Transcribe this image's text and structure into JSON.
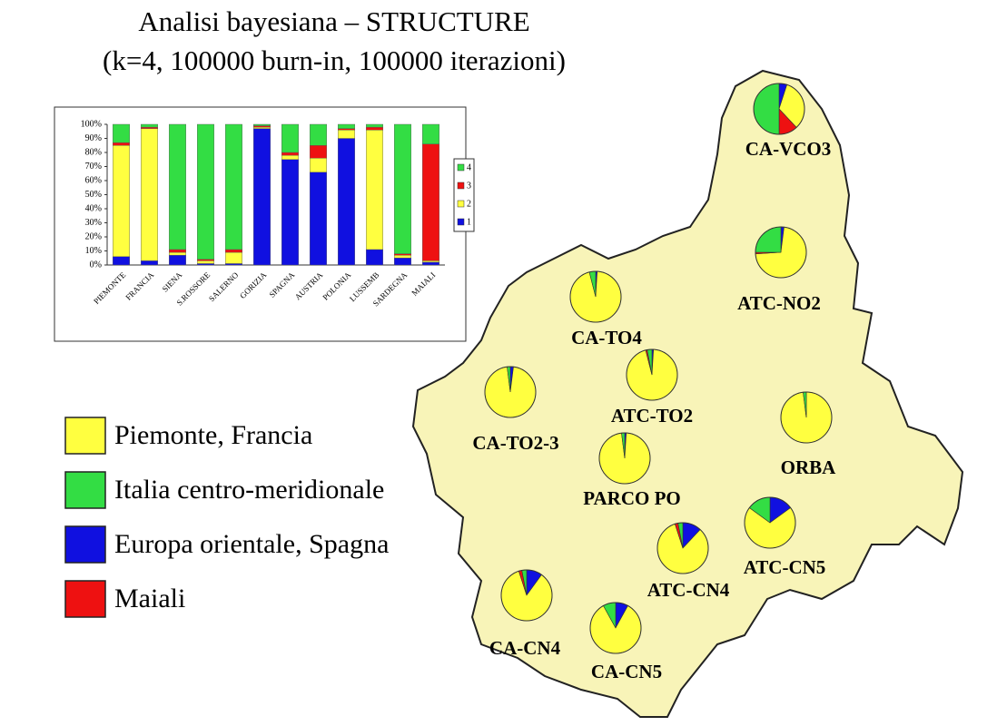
{
  "title": "Analisi bayesiana – STRUCTURE",
  "subtitle": "(k=4, 100000 burn-in, 100000 iterazioni)",
  "legend": [
    {
      "label": "Piemonte, Francia",
      "color": "#ffff40"
    },
    {
      "label": "Italia centro-meridionale",
      "color": "#33dd44"
    },
    {
      "label": "Europa orientale, Spagna",
      "color": "#1010e0"
    },
    {
      "label": "Maiali",
      "color": "#ee1111"
    }
  ],
  "chart_data": [
    {
      "type": "bar",
      "stacked": true,
      "categories": [
        "PIEMONTE",
        "FRANCIA",
        "SIENA",
        "S.ROSSORE",
        "SALERNO",
        "GORIZIA",
        "SPAGNA",
        "AUSTRIA",
        "POLONIA",
        "LUSSEMB",
        "SARDEGNA",
        "MAIALI"
      ],
      "series": [
        {
          "name": "1",
          "color": "#1010e0",
          "values": [
            6,
            3,
            7,
            1,
            1,
            97,
            75,
            66,
            90,
            11,
            5,
            2
          ]
        },
        {
          "name": "2",
          "color": "#ffff40",
          "values": [
            79,
            94,
            2,
            2,
            8,
            1,
            3,
            10,
            6,
            85,
            2,
            1
          ]
        },
        {
          "name": "3",
          "color": "#ee1111",
          "values": [
            2,
            1,
            2,
            1,
            2,
            1,
            2,
            9,
            1,
            2,
            1,
            83
          ]
        },
        {
          "name": "4",
          "color": "#33dd44",
          "values": [
            13,
            2,
            89,
            96,
            89,
            1,
            20,
            15,
            3,
            2,
            92,
            14
          ]
        }
      ],
      "ylim": [
        0,
        100
      ],
      "yticks": [
        {
          "value": 0,
          "label": "0%"
        },
        {
          "value": 10,
          "label": "10%"
        },
        {
          "value": 20,
          "label": "20%"
        },
        {
          "value": 30,
          "label": "30%"
        },
        {
          "value": 40,
          "label": "40%"
        },
        {
          "value": 50,
          "label": "50%"
        },
        {
          "value": 60,
          "label": "60%"
        },
        {
          "value": 70,
          "label": "70%"
        },
        {
          "value": 80,
          "label": "80%"
        },
        {
          "value": 90,
          "label": "90%"
        },
        {
          "value": 100,
          "label": "100%"
        }
      ],
      "legend_position": "right"
    },
    {
      "type": "pie",
      "colors": [
        "#1010e0",
        "#ffff40",
        "#ee1111",
        "#33dd44"
      ],
      "pies": [
        {
          "label": "CA-VCO3",
          "values": [
            5,
            33,
            12,
            50
          ]
        },
        {
          "label": "ATC-NO2",
          "values": [
            2,
            72,
            1,
            25
          ]
        },
        {
          "label": "CA-TO4",
          "values": [
            1,
            95,
            0,
            4
          ]
        },
        {
          "label": "CA-TO2-3",
          "values": [
            2,
            96,
            0,
            2
          ]
        },
        {
          "label": "ATC-TO2",
          "values": [
            1,
            95,
            1,
            3
          ]
        },
        {
          "label": "ORBA",
          "values": [
            0,
            98,
            0,
            2
          ]
        },
        {
          "label": "PARCO PO",
          "values": [
            1,
            97,
            0,
            2
          ]
        },
        {
          "label": "ATC-CN5",
          "values": [
            15,
            70,
            0,
            15
          ]
        },
        {
          "label": "ATC-CN4",
          "values": [
            12,
            83,
            2,
            3
          ]
        },
        {
          "label": "CA-CN4",
          "values": [
            10,
            85,
            2,
            3
          ]
        },
        {
          "label": "CA-CN5",
          "values": [
            8,
            84,
            0,
            8
          ]
        }
      ]
    }
  ]
}
